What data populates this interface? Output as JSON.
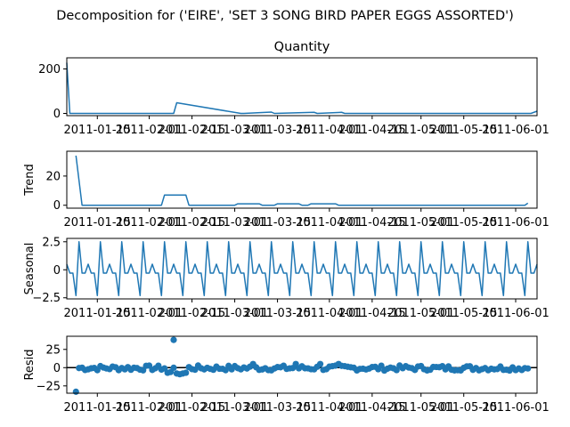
{
  "figure": {
    "suptitle": "Decomposition for ('EIRE', 'SET 3 SONG BIRD PAPER EGGS ASSORTED')"
  },
  "x_tick_labels": [
    "2011-01-15",
    "2011-02-01",
    "2011-02-15",
    "2011-03-01",
    "2011-03-15",
    "2011-04-01",
    "2011-04-15",
    "2011-05-01",
    "2011-05-15",
    "2011-06-01"
  ],
  "colors": {
    "line": "#1f77b4",
    "marker": "#1f77b4",
    "axis": "#000000",
    "zero_line": "#000000"
  },
  "chart_data": [
    {
      "id": "observed",
      "type": "line",
      "title": "Quantity",
      "ylabel": "",
      "x_range": [
        "2011-01-05",
        "2011-06-08"
      ],
      "ylim": [
        -10,
        250
      ],
      "yticks": [
        0,
        200
      ],
      "grid": false,
      "x": [
        "2011-01-05",
        "2011-01-06",
        "2011-02-09",
        "2011-02-10",
        "2011-03-03",
        "2011-03-04",
        "2011-03-13",
        "2011-03-14",
        "2011-03-27",
        "2011-03-28",
        "2011-04-05",
        "2011-04-06",
        "2011-06-06",
        "2011-06-08"
      ],
      "values": [
        228,
        0,
        0,
        48,
        0,
        0,
        6,
        0,
        5,
        0,
        5,
        0,
        0,
        10
      ]
    },
    {
      "id": "trend",
      "type": "line",
      "title": "",
      "ylabel": "Trend",
      "x_range": [
        "2011-01-05",
        "2011-06-08"
      ],
      "ylim": [
        -2,
        37
      ],
      "yticks": [
        0,
        20
      ],
      "grid": false,
      "x": [
        "2011-01-08",
        "2011-01-10",
        "2011-02-05",
        "2011-02-06",
        "2011-02-13",
        "2011-02-14",
        "2011-03-01",
        "2011-03-02",
        "2011-03-09",
        "2011-03-10",
        "2011-03-14",
        "2011-03-15",
        "2011-03-22",
        "2011-03-23",
        "2011-03-25",
        "2011-03-26",
        "2011-04-03",
        "2011-04-04",
        "2011-06-04",
        "2011-06-05"
      ],
      "values": [
        34,
        0,
        0,
        7,
        7,
        0,
        0,
        1,
        1,
        0,
        0,
        1,
        1,
        0,
        0,
        1,
        1,
        0,
        0,
        1.4
      ]
    },
    {
      "id": "seasonal",
      "type": "line",
      "title": "",
      "ylabel": "Seasonal",
      "x_range": [
        "2011-01-05",
        "2011-06-08"
      ],
      "ylim": [
        -2.6,
        2.8
      ],
      "yticks": [
        -2.5,
        0.0,
        2.5
      ],
      "grid": false,
      "period": 7,
      "start": "2011-01-05",
      "end": "2011-06-08",
      "pattern": [
        0.5,
        -0.3,
        -0.3,
        -2.3,
        2.5,
        -0.3,
        -0.3
      ]
    },
    {
      "id": "resid",
      "type": "scatter",
      "title": "",
      "ylabel": "Resid",
      "x_range": [
        "2011-01-05",
        "2011-06-08"
      ],
      "ylim": [
        -35,
        43
      ],
      "yticks": [
        -25,
        0,
        25
      ],
      "grid": false,
      "zero_line": true,
      "points": [
        [
          "2011-01-08",
          -33
        ],
        [
          "2011-02-09",
          38
        ]
      ],
      "noise": {
        "start": "2011-01-09",
        "end": "2011-06-05",
        "min": -10,
        "max": 6,
        "dips": [
          [
            "2011-02-07",
            -7
          ],
          [
            "2011-02-08",
            -6
          ],
          [
            "2011-02-10",
            -8
          ],
          [
            "2011-02-11",
            -9
          ],
          [
            "2011-02-12",
            -8
          ],
          [
            "2011-02-13",
            -7
          ]
        ],
        "bumps": [
          [
            "2011-03-07",
            5
          ],
          [
            "2011-03-21",
            5
          ],
          [
            "2011-03-29",
            5
          ],
          [
            "2011-04-04",
            5
          ]
        ]
      }
    }
  ]
}
